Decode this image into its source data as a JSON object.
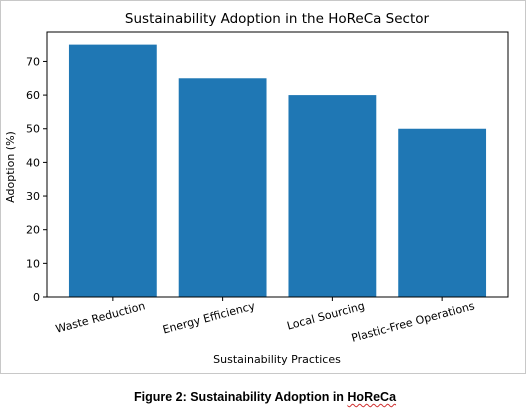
{
  "caption": {
    "prefix": "Figure 2: Sustainability Adoption in ",
    "underlined": "HoReCa"
  },
  "chart_data": {
    "type": "bar",
    "title": "Sustainability Adoption in the HoReCa Sector",
    "xlabel": "Sustainability Practices",
    "ylabel": "Adoption (%)",
    "categories": [
      "Waste Reduction",
      "Energy Efficiency",
      "Local Sourcing",
      "Plastic-Free Operations"
    ],
    "values": [
      75,
      65,
      60,
      50
    ],
    "ylim": [
      0,
      78.75
    ],
    "yticks": [
      0,
      10,
      20,
      30,
      40,
      50,
      60,
      70
    ],
    "bar_color": "#1f77b4",
    "grid": false,
    "legend": "none"
  }
}
